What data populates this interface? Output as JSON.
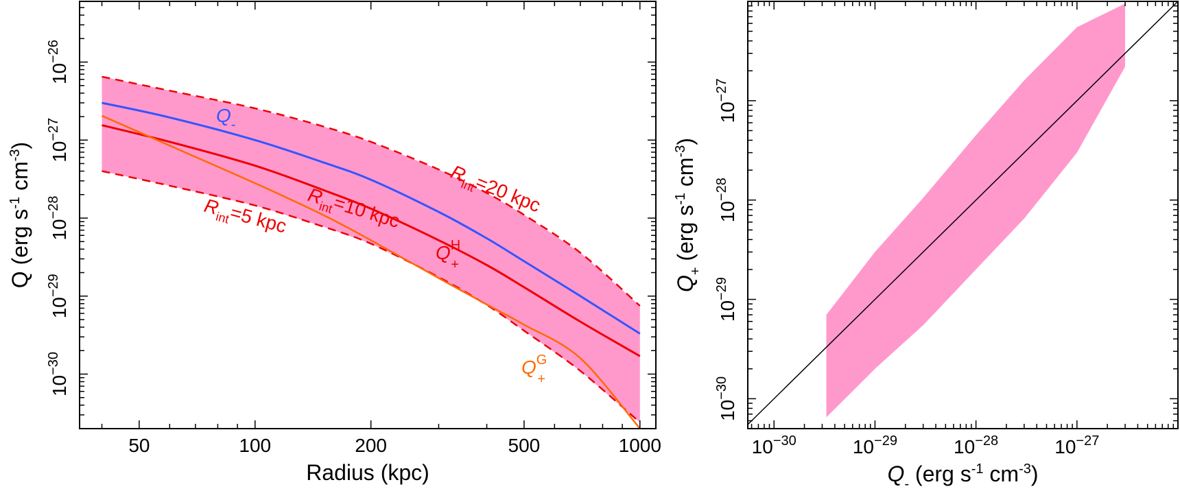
{
  "chart_data": [
    {
      "type": "line",
      "xscale": "log",
      "yscale": "log",
      "xlim": [
        35,
        1100
      ],
      "ylim": [
        2e-31,
        6e-26
      ],
      "xlabel": "Radius (kpc)",
      "ylabel_main": "Q (erg s",
      "ylabel_s_exp": "-1",
      "ylabel_mid": " cm",
      "ylabel_cm_exp": "-3",
      "ylabel_end": ")",
      "x_ticks": [
        {
          "value": 50,
          "label": "50"
        },
        {
          "value": 100,
          "label": "100"
        },
        {
          "value": 200,
          "label": "200"
        },
        {
          "value": 500,
          "label": "500"
        },
        {
          "value": 1000,
          "label": "1000"
        }
      ],
      "y_ticks": [
        {
          "value": 1e-30,
          "label": "10",
          "exp": "−30"
        },
        {
          "value": 1e-29,
          "label": "10",
          "exp": "−29"
        },
        {
          "value": 1e-28,
          "label": "10",
          "exp": "−28"
        },
        {
          "value": 1e-27,
          "label": "10",
          "exp": "−27"
        },
        {
          "value": 1e-26,
          "label": "10",
          "exp": "−26"
        }
      ],
      "band": {
        "color": "#ff99cc",
        "x": [
          40,
          60,
          100,
          150,
          200,
          300,
          400,
          500,
          700,
          1000
        ],
        "upper": [
          6.5e-27,
          4.3e-27,
          2.55e-27,
          1.5e-27,
          9.5e-28,
          4.2e-28,
          2.1e-28,
          1.1e-28,
          3.6e-29,
          7.5e-30
        ],
        "lower": [
          4e-28,
          2.6e-28,
          1.45e-28,
          7.8e-29,
          4.7e-29,
          1.75e-29,
          7.7e-30,
          3.6e-30,
          1.1e-30,
          2.4e-31
        ]
      },
      "series": [
        {
          "key": "rint20",
          "color": "#ee0000",
          "dash": "12,8",
          "width": 2.5,
          "x": [
            40,
            60,
            100,
            150,
            200,
            300,
            400,
            500,
            700,
            1000
          ],
          "y": [
            6.5e-27,
            4.3e-27,
            2.55e-27,
            1.5e-27,
            9.5e-28,
            4.2e-28,
            2.1e-28,
            1.1e-28,
            3.6e-29,
            7.5e-30
          ]
        },
        {
          "key": "rint5",
          "color": "#ee0000",
          "dash": "12,8",
          "width": 2.5,
          "x": [
            40,
            60,
            100,
            150,
            200,
            300,
            400,
            500,
            700,
            1000
          ],
          "y": [
            4e-28,
            2.6e-28,
            1.45e-28,
            7.8e-29,
            4.7e-29,
            1.75e-29,
            7.7e-30,
            3.6e-30,
            1.1e-30,
            2.4e-31
          ]
        },
        {
          "key": "qminus",
          "color": "#3355ff",
          "dash": "",
          "width": 3,
          "x": [
            40,
            60,
            100,
            150,
            200,
            300,
            400,
            500,
            700,
            1000
          ],
          "y": [
            3e-27,
            1.95e-27,
            1e-27,
            5.2e-28,
            3.1e-28,
            1.2e-28,
            5.5e-29,
            2.8e-29,
            1e-29,
            3.3e-30
          ]
        },
        {
          "key": "qplusH",
          "color": "#ee0000",
          "dash": "",
          "width": 3,
          "x": [
            40,
            60,
            100,
            150,
            200,
            300,
            400,
            500,
            700,
            1000
          ],
          "y": [
            1.55e-27,
            9.5e-28,
            4.7e-28,
            2.3e-28,
            1.32e-28,
            5.2e-29,
            2.5e-29,
            1.3e-29,
            4.7e-30,
            1.7e-30
          ]
        },
        {
          "key": "qplusG",
          "color": "#ff6a00",
          "dash": "",
          "width": 2.5,
          "x": [
            40,
            60,
            100,
            150,
            200,
            300,
            400,
            500,
            700,
            1000
          ],
          "y": [
            2.05e-27,
            8.5e-28,
            2.8e-28,
            1.1e-28,
            5.2e-29,
            1.7e-29,
            7.8e-30,
            4.3e-30,
            1.6e-30,
            2e-31
          ]
        }
      ],
      "annotations": {
        "qminus": {
          "main": "Q",
          "sub": "-",
          "color": "#3355ff"
        },
        "qplusH": {
          "main": "Q",
          "sup": "H",
          "sub": "+",
          "color": "#ee0000"
        },
        "qplusG": {
          "main": "Q",
          "sup": "G",
          "sub": "+",
          "color": "#ff6a00"
        },
        "rint20": {
          "main": "R",
          "sub": "int",
          "rest": "=20 kpc",
          "color": "#ee0000"
        },
        "rint10": {
          "main": "R",
          "sub": "int",
          "rest": "=10 kpc",
          "color": "#ee0000"
        },
        "rint5": {
          "main": "R",
          "sub": "int",
          "rest": "=5 kpc",
          "color": "#ee0000"
        }
      }
    },
    {
      "type": "scatter",
      "xscale": "log",
      "yscale": "log",
      "xlim": [
        5.5e-31,
        1e-26
      ],
      "ylim": [
        5e-31,
        1e-26
      ],
      "xlabel_main": "Q",
      "xlabel_sub": "-",
      "xlabel_rest": " (erg s",
      "xlabel_s_exp": "-1",
      "xlabel_mid": " cm",
      "xlabel_cm_exp": "-3",
      "xlabel_end": ")",
      "ylabel_main": "Q",
      "ylabel_sub": "+",
      "ylabel_rest": " (erg s",
      "ylabel_s_exp": "-1",
      "ylabel_mid": " cm",
      "ylabel_cm_exp": "-3",
      "ylabel_end": ")",
      "x_ticks": [
        {
          "value": 1e-30,
          "label": "10",
          "exp": "−30"
        },
        {
          "value": 1e-29,
          "label": "10",
          "exp": "−29"
        },
        {
          "value": 1e-28,
          "label": "10",
          "exp": "−28"
        },
        {
          "value": 1e-27,
          "label": "10",
          "exp": "−27"
        }
      ],
      "y_ticks": [
        {
          "value": 1e-30,
          "label": "10",
          "exp": "−30"
        },
        {
          "value": 1e-29,
          "label": "10",
          "exp": "−29"
        },
        {
          "value": 1e-28,
          "label": "10",
          "exp": "−28"
        },
        {
          "value": 1e-27,
          "label": "10",
          "exp": "−27"
        }
      ],
      "band": {
        "color": "#ff99cc",
        "x": [
          3.3e-30,
          1e-29,
          3e-29,
          1e-28,
          3e-28,
          1e-27,
          3e-27
        ],
        "upper": [
          7e-30,
          3e-29,
          1.05e-28,
          4.5e-28,
          1.6e-27,
          5.5e-27,
          9.5e-27
        ],
        "lower": [
          6.5e-31,
          2e-30,
          5.5e-30,
          2e-29,
          6.5e-29,
          3e-28,
          2.2e-27
        ]
      },
      "series": [
        {
          "key": "unity",
          "color": "#000000",
          "width": 1.5,
          "x": [
            5.5e-31,
            1e-26
          ],
          "y": [
            5.5e-31,
            1e-26
          ]
        }
      ]
    }
  ]
}
